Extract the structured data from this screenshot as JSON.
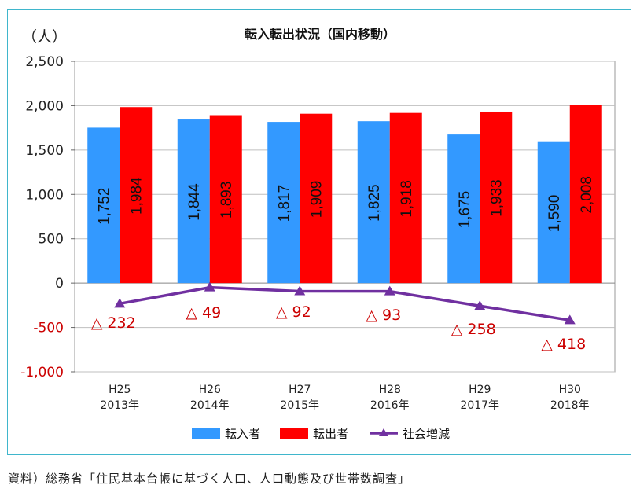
{
  "chart_data": {
    "type": "bar",
    "title": "転入転出状況（国内移動）",
    "ylabel": "（人）",
    "ylim": [
      -1000,
      2500
    ],
    "yticks": [
      -1000,
      -500,
      0,
      500,
      1000,
      1500,
      2000,
      2500
    ],
    "ytick_labels": [
      "-1,000",
      "-500",
      "0",
      "500",
      "1,000",
      "1,500",
      "2,000",
      "2,500"
    ],
    "categories": [
      {
        "era": "H25",
        "year": "2013年"
      },
      {
        "era": "H26",
        "year": "2014年"
      },
      {
        "era": "H27",
        "year": "2015年"
      },
      {
        "era": "H28",
        "year": "2016年"
      },
      {
        "era": "H29",
        "year": "2017年"
      },
      {
        "era": "H30",
        "year": "2018年"
      }
    ],
    "series": [
      {
        "name": "転入者",
        "kind": "bar",
        "color": "#3399ff",
        "values": [
          1752,
          1844,
          1817,
          1825,
          1675,
          1590
        ],
        "labels": [
          "1,752",
          "1,844",
          "1,817",
          "1,825",
          "1,675",
          "1,590"
        ]
      },
      {
        "name": "転出者",
        "kind": "bar",
        "color": "#ff0000",
        "values": [
          1984,
          1893,
          1909,
          1918,
          1933,
          2008
        ],
        "labels": [
          "1,984",
          "1,893",
          "1,909",
          "1,918",
          "1,933",
          "2,008"
        ]
      },
      {
        "name": "社会増減",
        "kind": "line",
        "color": "#7030a0",
        "values": [
          -232,
          -49,
          -92,
          -93,
          -258,
          -418
        ],
        "labels": [
          "△ 232",
          "△ 49",
          "△ 92",
          "△ 93",
          "△ 258",
          "△ 418"
        ]
      }
    ],
    "grid": true,
    "legend": "bottom",
    "colors": {
      "axis_text": "#222222",
      "negative_text": "#cc0000",
      "frame": "#3fb6cc",
      "grid": "#bfbfbf"
    }
  },
  "source_note": "資料）総務省「住民基本台帳に基づく人口、人口動態及び世帯数調査」"
}
